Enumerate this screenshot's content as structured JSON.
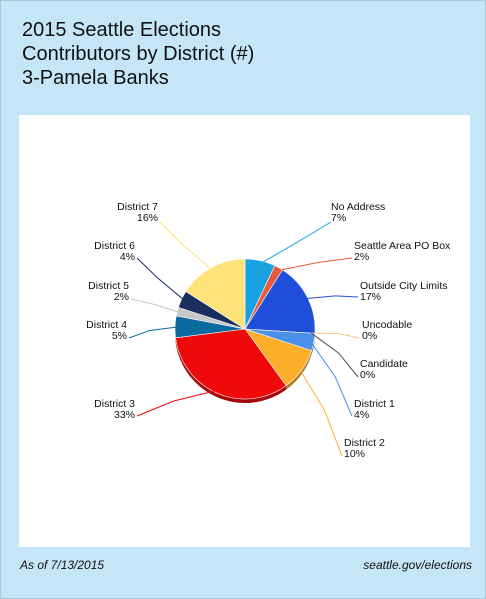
{
  "header": {
    "line1": "2015 Seattle Elections",
    "line2": "Contributors by District (#)",
    "line3": "3-Pamela Banks"
  },
  "footer": {
    "as_of": "As of 7/13/2015",
    "source": "seattle.gov/elections"
  },
  "chart_data": {
    "type": "pie",
    "title": "",
    "start_category": "No Address",
    "direction": "clockwise",
    "slices": [
      {
        "label": "No Address",
        "value_label": "7%",
        "value": 7,
        "color": "#1aa1e0"
      },
      {
        "label": "Seattle Area PO Box",
        "value_label": "2%",
        "value": 2,
        "color": "#e85b3a"
      },
      {
        "label": "Outside City Limits",
        "value_label": "17%",
        "value": 17,
        "color": "#1f4fd8"
      },
      {
        "label": "Uncodable",
        "value_label": "0%",
        "value": 0,
        "color": "#f2c78a"
      },
      {
        "label": "Candidate",
        "value_label": "0%",
        "value": 0,
        "color": "#4d4d4d"
      },
      {
        "label": "District 1",
        "value_label": "4%",
        "value": 4,
        "color": "#4a8fe8"
      },
      {
        "label": "District 2",
        "value_label": "10%",
        "value": 10,
        "color": "#fcae2b"
      },
      {
        "label": "District 3",
        "value_label": "33%",
        "value": 33,
        "color": "#ee0a0a"
      },
      {
        "label": "District 4",
        "value_label": "5%",
        "value": 5,
        "color": "#0a6a9e"
      },
      {
        "label": "District 5",
        "value_label": "2%",
        "value": 2,
        "color": "#c8c8c8"
      },
      {
        "label": "District 6",
        "value_label": "4%",
        "value": 4,
        "color": "#1b2f5e"
      },
      {
        "label": "District 7",
        "value_label": "16%",
        "value": 16,
        "color": "#fde37a"
      }
    ]
  }
}
